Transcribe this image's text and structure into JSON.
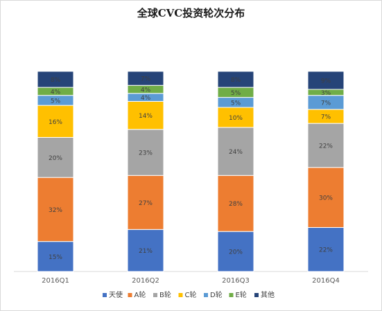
{
  "chart_data": {
    "type": "bar",
    "stacked": true,
    "title": "全球CVC投资轮次分布",
    "categories": [
      "2016Q1",
      "2016Q2",
      "2016Q3",
      "2016Q4"
    ],
    "series": [
      {
        "name": "天使",
        "color": "#4472c4",
        "values": [
          15,
          21,
          20,
          22
        ],
        "labels": [
          "15%",
          "21%",
          "20%",
          "22%"
        ]
      },
      {
        "name": "A轮",
        "color": "#ed7d31",
        "values": [
          32,
          27,
          28,
          30
        ],
        "labels": [
          "32%",
          "27%",
          "28%",
          "30%"
        ]
      },
      {
        "name": "B轮",
        "color": "#a5a5a5",
        "values": [
          20,
          23,
          24,
          22
        ],
        "labels": [
          "20%",
          "23%",
          "24%",
          "22%"
        ]
      },
      {
        "name": "C轮",
        "color": "#ffc000",
        "values": [
          16,
          14,
          10,
          7
        ],
        "labels": [
          "16%",
          "14%",
          "10%",
          "7%"
        ]
      },
      {
        "name": "D轮",
        "color": "#5b9bd5",
        "values": [
          5,
          4,
          5,
          7
        ],
        "labels": [
          "5%",
          "4%",
          "5%",
          "7%"
        ]
      },
      {
        "name": "E轮",
        "color": "#70ad47",
        "values": [
          4,
          4,
          5,
          3
        ],
        "labels": [
          "4%",
          "4%",
          "5%",
          "3%"
        ]
      },
      {
        "name": "其他",
        "color": "#264478",
        "values": [
          8,
          7,
          8,
          9
        ],
        "labels": [
          "8%",
          "7%",
          "8%",
          "9%"
        ]
      }
    ],
    "ylim": [
      0,
      100
    ],
    "grid": false,
    "legend_position": "bottom"
  }
}
